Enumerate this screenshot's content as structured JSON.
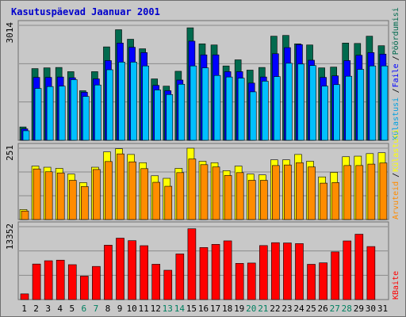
{
  "chart_data": [
    {
      "type": "bar",
      "title": "Kasutuspäevad Jaanuar 2001",
      "x": [
        "1",
        "2",
        "3",
        "4",
        "5",
        "6",
        "7",
        "8",
        "9",
        "10",
        "11",
        "12",
        "13",
        "14",
        "15",
        "16",
        "17",
        "18",
        "19",
        "20",
        "21",
        "22",
        "23",
        "24",
        "25",
        "26",
        "27",
        "28",
        "29",
        "30",
        "31"
      ],
      "x_weekend": [
        false,
        false,
        false,
        false,
        false,
        true,
        true,
        false,
        false,
        false,
        false,
        false,
        true,
        true,
        false,
        false,
        false,
        false,
        false,
        true,
        true,
        false,
        false,
        false,
        false,
        false,
        true,
        true,
        false,
        false,
        false
      ],
      "ylabel_max": "3014",
      "ylim": [
        0,
        3014
      ],
      "grid": true,
      "series": [
        {
          "name": "Pöördumisi",
          "color": "#006A4E",
          "values": [
            350,
            1880,
            1900,
            1910,
            1800,
            1300,
            1800,
            2450,
            2900,
            2650,
            2400,
            1610,
            1420,
            1810,
            2950,
            2530,
            2500,
            1950,
            2110,
            1840,
            1910,
            2730,
            2750,
            2530,
            2500,
            1900,
            1920,
            2550,
            2540,
            2730,
            2480
          ]
        },
        {
          "name": "Faile",
          "color": "#0000FF",
          "values": [
            300,
            1650,
            1650,
            1660,
            1640,
            1260,
            1610,
            2090,
            2550,
            2440,
            2300,
            1440,
            1300,
            1580,
            2600,
            2240,
            2240,
            1800,
            1800,
            1500,
            1660,
            2270,
            2430,
            2510,
            2100,
            1650,
            1690,
            2090,
            2230,
            2300,
            2260
          ]
        },
        {
          "name": "Külastusi",
          "color": "#00C0FF",
          "values": [
            250,
            1360,
            1410,
            1420,
            1590,
            1150,
            1450,
            1850,
            2050,
            2050,
            1950,
            1320,
            1200,
            1470,
            1950,
            1900,
            1700,
            1660,
            1630,
            1270,
            1550,
            1670,
            2020,
            2000,
            1960,
            1420,
            1460,
            1680,
            1860,
            1950,
            1950
          ]
        }
      ],
      "legend_order": [
        "Külastusi",
        "Faile",
        "Pöördumisi"
      ]
    },
    {
      "type": "bar",
      "ylabel_max": "251",
      "ylim": [
        0,
        251
      ],
      "grid": true,
      "series": [
        {
          "name": "Külastusi",
          "color": "#FFFF00",
          "values": [
            35,
            188,
            184,
            180,
            160,
            130,
            184,
            238,
            249,
            229,
            200,
            154,
            145,
            180,
            251,
            205,
            200,
            172,
            188,
            160,
            157,
            210,
            210,
            229,
            205,
            150,
            166,
            221,
            223,
            232,
            235
          ]
        },
        {
          "name": "Arvuteid",
          "color": "#FF8C00",
          "values": [
            30,
            178,
            168,
            164,
            138,
            116,
            176,
            204,
            231,
            203,
            179,
            131,
            117,
            165,
            213,
            193,
            185,
            155,
            165,
            138,
            138,
            190,
            192,
            200,
            185,
            128,
            130,
            190,
            190,
            195,
            199
          ]
        }
      ],
      "legend_order": [
        "Arvuteid",
        "Külastusi"
      ]
    },
    {
      "type": "bar",
      "ylabel_max": "13352",
      "ylim": [
        0,
        13352
      ],
      "grid": true,
      "series": [
        {
          "name": "KBaite",
          "color": "#FF0000",
          "values": [
            1040,
            6510,
            7110,
            7220,
            6390,
            4290,
            6070,
            9960,
            11250,
            10790,
            9870,
            6470,
            5370,
            8360,
            12970,
            9530,
            10110,
            10750,
            6630,
            6690,
            9890,
            10420,
            10370,
            10250,
            6460,
            6730,
            8730,
            10740,
            11970,
            9710
          ]
        }
      ],
      "legend_order": [
        "KBaite"
      ]
    }
  ]
}
